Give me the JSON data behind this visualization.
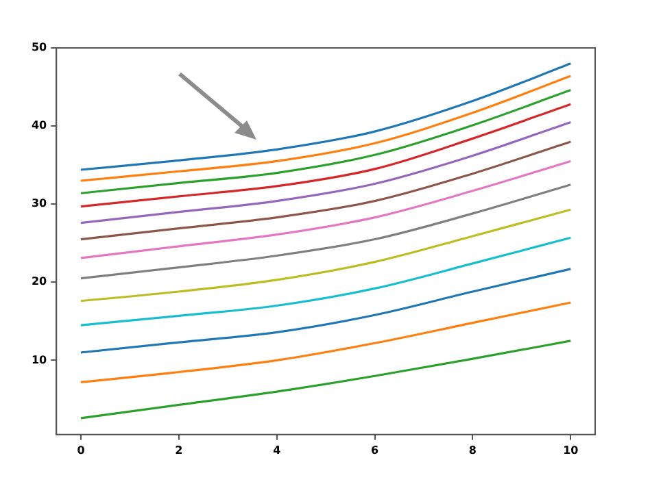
{
  "chart_data": {
    "type": "line",
    "x": [
      0,
      2,
      4,
      6,
      8,
      10
    ],
    "xlim": [
      -0.5,
      10.5
    ],
    "xticks": [
      0,
      2,
      4,
      6,
      8,
      10
    ],
    "ylim": [
      0.5,
      50
    ],
    "yticks": [
      10,
      20,
      30,
      40,
      50
    ],
    "grid": false,
    "legend": false,
    "marker": "none",
    "line_style": "solid",
    "series": [
      {
        "color": "#1f77b4",
        "values": [
          34.4,
          35.6,
          37.0,
          39.3,
          43.2,
          48.0
        ]
      },
      {
        "color": "#ff7f0e",
        "values": [
          33.0,
          34.2,
          35.5,
          37.8,
          41.7,
          46.4
        ]
      },
      {
        "color": "#2ca02c",
        "values": [
          31.4,
          32.7,
          34.0,
          36.3,
          40.1,
          44.6
        ]
      },
      {
        "color": "#d62728",
        "values": [
          29.7,
          31.0,
          32.3,
          34.5,
          38.4,
          42.8
        ]
      },
      {
        "color": "#9467bd",
        "values": [
          27.6,
          29.0,
          30.4,
          32.6,
          36.2,
          40.5
        ]
      },
      {
        "color": "#8c564b",
        "values": [
          25.5,
          26.9,
          28.3,
          30.4,
          33.9,
          38.0
        ]
      },
      {
        "color": "#e377c2",
        "values": [
          23.1,
          24.6,
          26.1,
          28.3,
          31.7,
          35.5
        ]
      },
      {
        "color": "#7f7f7f",
        "values": [
          20.5,
          21.9,
          23.4,
          25.5,
          28.8,
          32.5
        ]
      },
      {
        "color": "#bcbd22",
        "values": [
          17.6,
          18.8,
          20.3,
          22.6,
          25.9,
          29.3
        ]
      },
      {
        "color": "#17becf",
        "values": [
          14.5,
          15.7,
          17.0,
          19.2,
          22.4,
          25.7
        ]
      },
      {
        "color": "#1f77b4",
        "values": [
          11.0,
          12.3,
          13.6,
          15.8,
          18.8,
          21.7
        ]
      },
      {
        "color": "#ff7f0e",
        "values": [
          7.2,
          8.5,
          10.0,
          12.2,
          14.8,
          17.4
        ]
      },
      {
        "color": "#2ca02c",
        "values": [
          2.6,
          4.3,
          6.0,
          8.0,
          10.2,
          12.5
        ]
      }
    ]
  }
}
